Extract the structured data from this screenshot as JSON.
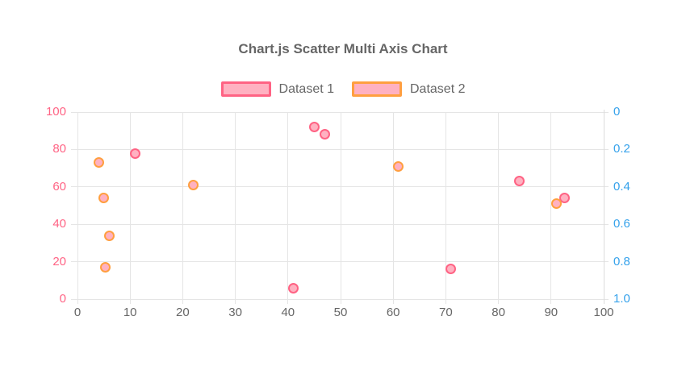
{
  "title": "Chart.js Scatter Multi Axis Chart",
  "legend": [
    {
      "label": "Dataset 1",
      "border_color": "#ff6384",
      "fill_color": "#ffb1c1"
    },
    {
      "label": "Dataset 2",
      "border_color": "#ff9f40",
      "fill_color": "#ffb1c1"
    }
  ],
  "colors": {
    "title_text": "#666666",
    "legend_text": "#666666",
    "grid": "#e5e5e5",
    "x_tick_text": "#666666",
    "y_left_tick_text": "#ff6384",
    "y_right_tick_text": "#36a2eb",
    "dataset1_border": "#ff6384",
    "dataset1_fill": "#ffb1c1",
    "dataset2_border": "#ff9f40",
    "dataset2_fill": "#ffb1c1"
  },
  "chart_data": {
    "type": "scatter",
    "title": "Chart.js Scatter Multi Axis Chart",
    "legend_position": "top",
    "grid": true,
    "x_axis": {
      "min": 0,
      "max": 100,
      "tick_labels": [
        "0",
        "10",
        "20",
        "30",
        "40",
        "50",
        "60",
        "70",
        "80",
        "90",
        "100"
      ]
    },
    "y_axis_left": {
      "min": 0,
      "max": 100,
      "reversed": false,
      "tick_labels": [
        "0",
        "20",
        "40",
        "60",
        "80",
        "100"
      ]
    },
    "y_axis_right": {
      "min": 0,
      "max": 1,
      "reversed": true,
      "tick_labels": [
        "0",
        "0.2",
        "0.4",
        "0.6",
        "0.8",
        "1.0"
      ]
    },
    "series": [
      {
        "name": "Dataset 1",
        "axis": "left",
        "border_color": "#ff6384",
        "fill_color": "#ffb1c1",
        "points": [
          {
            "x": 11,
            "y": 78
          },
          {
            "x": 45,
            "y": 92
          },
          {
            "x": 47,
            "y": 88
          },
          {
            "x": 41,
            "y": 6
          },
          {
            "x": 84,
            "y": 63
          },
          {
            "x": 92.5,
            "y": 54
          },
          {
            "x": 71,
            "y": 16
          }
        ]
      },
      {
        "name": "Dataset 2",
        "axis": "right",
        "border_color": "#ff9f40",
        "fill_color": "#ffb1c1",
        "points": [
          {
            "x": 4,
            "y": 0.27
          },
          {
            "x": 5,
            "y": 0.46
          },
          {
            "x": 22,
            "y": 0.39
          },
          {
            "x": 6,
            "y": 0.66
          },
          {
            "x": 5.3,
            "y": 0.83
          },
          {
            "x": 61,
            "y": 0.29
          },
          {
            "x": 91,
            "y": 0.49
          }
        ]
      }
    ]
  }
}
